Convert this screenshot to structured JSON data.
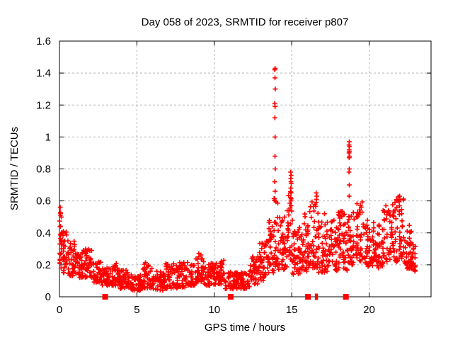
{
  "chart_data": {
    "type": "scatter",
    "title": "Day 058 of 2023, SRMTID for receiver p807",
    "xlabel": "GPS time / hours",
    "ylabel": "SRMTID / TECUs",
    "xlim": [
      0,
      24
    ],
    "ylim": [
      0,
      1.6
    ],
    "xticks": [
      {
        "v": 0,
        "label": "0"
      },
      {
        "v": 5,
        "label": "5"
      },
      {
        "v": 10,
        "label": "10"
      },
      {
        "v": 15,
        "label": "15"
      },
      {
        "v": 20,
        "label": "20"
      }
    ],
    "yticks": [
      {
        "v": 0,
        "label": "0"
      },
      {
        "v": 0.2,
        "label": "0.2"
      },
      {
        "v": 0.4,
        "label": "0.4"
      },
      {
        "v": 0.6,
        "label": "0.6"
      },
      {
        "v": 0.8,
        "label": "0.8"
      },
      {
        "v": 1.0,
        "label": "1"
      },
      {
        "v": 1.2,
        "label": "1.2"
      },
      {
        "v": 1.4,
        "label": "1.4"
      },
      {
        "v": 1.6,
        "label": "1.6"
      }
    ],
    "grid": true,
    "legend": "none",
    "marker": "plus",
    "point_color": "#ff0000",
    "grid_color": "#b4b4b4",
    "axis_color": "#000000",
    "band_format": "[x_start, x_end, y_min, y_max, n_points] — approximate density envelope of the scatter cloud",
    "density_bands": [
      [
        0.0,
        0.15,
        0.18,
        0.56,
        25
      ],
      [
        0.15,
        0.5,
        0.15,
        0.42,
        30
      ],
      [
        0.5,
        1.0,
        0.13,
        0.36,
        40
      ],
      [
        1.0,
        1.6,
        0.12,
        0.3,
        45
      ],
      [
        1.6,
        2.2,
        0.12,
        0.3,
        45
      ],
      [
        2.2,
        2.7,
        0.09,
        0.22,
        35
      ],
      [
        2.7,
        3.2,
        0.07,
        0.18,
        35
      ],
      [
        3.2,
        3.9,
        0.07,
        0.21,
        45
      ],
      [
        3.9,
        4.6,
        0.05,
        0.17,
        45
      ],
      [
        4.6,
        5.4,
        0.04,
        0.14,
        50
      ],
      [
        5.4,
        6.0,
        0.05,
        0.22,
        40
      ],
      [
        6.0,
        6.8,
        0.04,
        0.16,
        50
      ],
      [
        6.8,
        7.6,
        0.05,
        0.21,
        50
      ],
      [
        7.6,
        8.3,
        0.06,
        0.22,
        45
      ],
      [
        8.3,
        8.8,
        0.07,
        0.2,
        35
      ],
      [
        8.8,
        9.3,
        0.09,
        0.27,
        40
      ],
      [
        9.3,
        10.1,
        0.07,
        0.22,
        50
      ],
      [
        10.1,
        10.7,
        0.08,
        0.24,
        40
      ],
      [
        10.7,
        11.6,
        0.05,
        0.16,
        55
      ],
      [
        11.6,
        12.3,
        0.05,
        0.16,
        45
      ],
      [
        12.3,
        12.9,
        0.08,
        0.26,
        40
      ],
      [
        12.9,
        13.5,
        0.1,
        0.35,
        45
      ],
      [
        13.5,
        13.85,
        0.15,
        0.48,
        30
      ],
      [
        13.85,
        14.15,
        0.18,
        0.62,
        25
      ],
      [
        14.15,
        14.7,
        0.17,
        0.5,
        40
      ],
      [
        14.7,
        15.05,
        0.2,
        0.66,
        30
      ],
      [
        15.05,
        15.6,
        0.14,
        0.45,
        45
      ],
      [
        15.6,
        16.1,
        0.16,
        0.52,
        40
      ],
      [
        16.1,
        16.7,
        0.18,
        0.62,
        45
      ],
      [
        16.7,
        17.3,
        0.15,
        0.52,
        45
      ],
      [
        17.3,
        18.0,
        0.16,
        0.48,
        50
      ],
      [
        18.0,
        18.6,
        0.16,
        0.55,
        45
      ],
      [
        18.6,
        19.1,
        0.2,
        0.58,
        40
      ],
      [
        19.1,
        19.6,
        0.22,
        0.6,
        40
      ],
      [
        19.6,
        20.3,
        0.18,
        0.48,
        50
      ],
      [
        20.3,
        20.9,
        0.18,
        0.45,
        45
      ],
      [
        20.9,
        21.6,
        0.22,
        0.58,
        50
      ],
      [
        21.6,
        22.3,
        0.22,
        0.63,
        50
      ],
      [
        22.3,
        22.75,
        0.17,
        0.46,
        35
      ],
      [
        22.75,
        23.0,
        0.14,
        0.33,
        20
      ]
    ],
    "spike_points": [
      [
        13.93,
        1.43
      ],
      [
        13.9,
        1.42
      ],
      [
        13.92,
        1.37
      ],
      [
        13.94,
        1.3
      ],
      [
        13.9,
        1.21
      ],
      [
        13.93,
        1.19
      ],
      [
        13.91,
        1.12
      ],
      [
        13.93,
        1.0
      ],
      [
        13.92,
        0.88
      ],
      [
        13.94,
        0.8
      ],
      [
        13.9,
        0.72
      ],
      [
        13.93,
        0.66
      ],
      [
        14.93,
        0.78
      ],
      [
        14.96,
        0.76
      ],
      [
        14.94,
        0.74
      ],
      [
        14.95,
        0.72
      ],
      [
        14.97,
        0.71
      ],
      [
        14.94,
        0.68
      ],
      [
        14.96,
        0.65
      ],
      [
        14.93,
        0.62
      ],
      [
        14.95,
        0.6
      ],
      [
        14.96,
        0.57
      ],
      [
        16.58,
        0.65
      ],
      [
        16.62,
        0.63
      ],
      [
        16.6,
        0.61
      ],
      [
        18.72,
        0.97
      ],
      [
        18.7,
        0.95
      ],
      [
        18.73,
        0.94
      ],
      [
        18.71,
        0.92
      ],
      [
        18.72,
        0.91
      ],
      [
        18.7,
        0.9
      ],
      [
        18.73,
        0.88
      ],
      [
        18.71,
        0.87
      ],
      [
        18.72,
        0.8
      ],
      [
        18.7,
        0.78
      ],
      [
        18.72,
        0.7
      ],
      [
        18.71,
        0.63
      ],
      [
        21.97,
        0.63
      ],
      [
        0.05,
        0.56
      ],
      [
        9.0,
        0.27
      ]
    ],
    "baseline_markers": {
      "y": 0,
      "square_x": [
        2.95,
        11.06,
        16.05,
        18.5
      ],
      "tick_x": [
        16.55,
        16.64
      ],
      "color": "#ff0000"
    }
  }
}
